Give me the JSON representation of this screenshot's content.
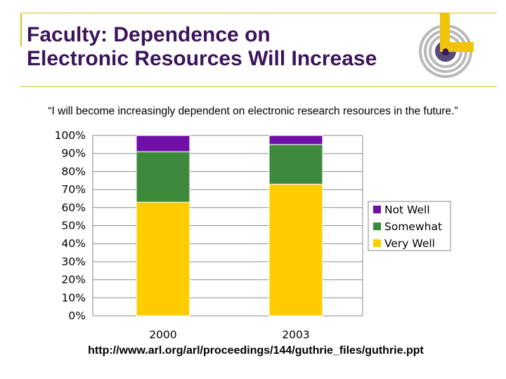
{
  "slide": {
    "title_line1": "Faculty:  Dependence on",
    "title_line2": "Electronic Resources Will Increase",
    "quote": "“I will become increasingly dependent on electronic research resources in the future.”",
    "source_url": "http://www.arl.org/arl/proceedings/144/guthrie_files/guthrie.ppt"
  },
  "colors": {
    "title": "#3b145a",
    "accent_gold": "#d9bf2a",
    "not_well": "#7010a8",
    "somewhat": "#3e8a3c",
    "very_well": "#ffcc00"
  },
  "chart_data": {
    "type": "bar",
    "stacked": true,
    "categories": [
      "2000",
      "2003"
    ],
    "series": [
      {
        "name": "Very Well",
        "values": [
          63,
          73
        ],
        "color": "#ffcc00"
      },
      {
        "name": "Somewhat",
        "values": [
          28,
          22
        ],
        "color": "#3e8a3c"
      },
      {
        "name": "Not Well",
        "values": [
          9,
          5
        ],
        "color": "#7010a8"
      }
    ],
    "yticks": [
      "0%",
      "10%",
      "20%",
      "30%",
      "40%",
      "50%",
      "60%",
      "70%",
      "80%",
      "90%",
      "100%"
    ],
    "ylim": [
      0,
      100
    ],
    "grid": true,
    "legend": {
      "position": "right",
      "entries": [
        "Not Well",
        "Somewhat",
        "Very Well"
      ]
    }
  }
}
